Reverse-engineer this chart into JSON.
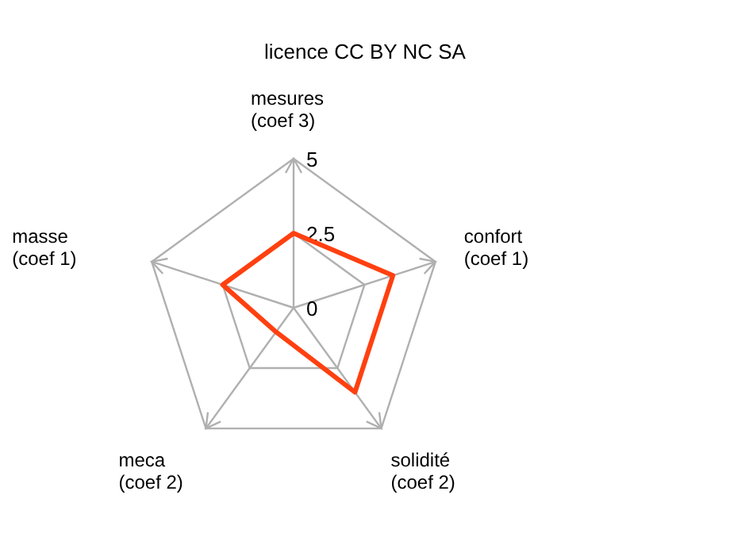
{
  "chart_data": {
    "type": "radar",
    "title": "licence CC BY NC SA",
    "categories": [
      "mesures\n(coef 3)",
      "confort\n(coef 1)",
      "solidité\n(coef 2)",
      "meca\n(coef 2)",
      "masse\n(coef 1)"
    ],
    "series": [
      {
        "color": "#ff4010",
        "values": [
          2.5,
          3.5,
          3.5,
          1,
          2.5
        ]
      }
    ],
    "ylim": [
      0,
      5
    ],
    "yticks": [
      0,
      2.5,
      5
    ],
    "grid": true
  }
}
